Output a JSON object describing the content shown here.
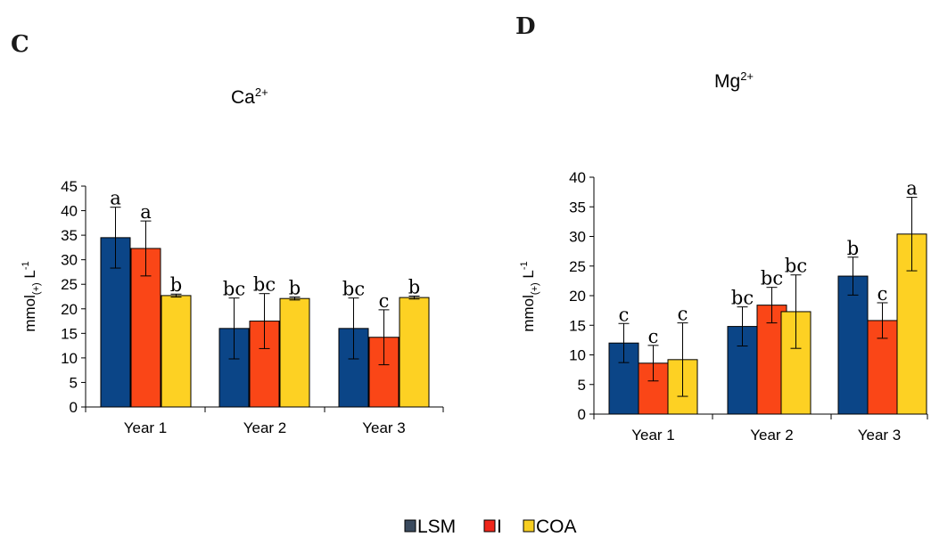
{
  "panels": {
    "c": {
      "letter": "C",
      "title": "Ca",
      "title_sup": "2+"
    },
    "d": {
      "letter": "D",
      "title": "Mg",
      "title_sup": "2+"
    }
  },
  "ylabel_main": "mmol",
  "ylabel_sub": "(+)",
  "ylabel_unit": " L",
  "ylabel_sup": "-1",
  "colors": {
    "LSM": "#0b4587",
    "I": "#fa4617",
    "COA": "#fdd123"
  },
  "legend": [
    {
      "name": "LSM",
      "color": "#3a4a5e"
    },
    {
      "name": "I",
      "color": "#f0261a"
    },
    {
      "name": "COA",
      "color": "#f8cf22"
    }
  ],
  "chart_data": [
    {
      "type": "bar",
      "title": "Ca2+",
      "ylabel": "mmol(+) L-1",
      "ylim": [
        0,
        45
      ],
      "yticks": [
        0,
        5,
        10,
        15,
        20,
        25,
        30,
        35,
        40,
        45
      ],
      "categories": [
        "Year 1",
        "Year 2",
        "Year 3"
      ],
      "series": [
        {
          "name": "LSM",
          "values": [
            34.5,
            16.0,
            16.0
          ],
          "errors": [
            6.2,
            6.2,
            6.2
          ],
          "letters": [
            "a",
            "bc",
            "bc"
          ]
        },
        {
          "name": "I",
          "values": [
            32.3,
            17.5,
            14.2
          ],
          "errors": [
            5.6,
            5.6,
            5.6
          ],
          "letters": [
            "a",
            "bc",
            "c"
          ]
        },
        {
          "name": "COA",
          "values": [
            22.7,
            22.1,
            22.3
          ],
          "errors": [
            0.3,
            0.3,
            0.3
          ],
          "letters": [
            "b",
            "b",
            "b"
          ]
        }
      ]
    },
    {
      "type": "bar",
      "title": "Mg2+",
      "ylabel": "mmol(+) L-1",
      "ylim": [
        0,
        40
      ],
      "yticks": [
        0,
        5,
        10,
        15,
        20,
        25,
        30,
        35,
        40
      ],
      "categories": [
        "Year 1",
        "Year 2",
        "Year 3"
      ],
      "series": [
        {
          "name": "LSM",
          "values": [
            12.0,
            14.8,
            23.3
          ],
          "errors": [
            3.3,
            3.3,
            3.2
          ],
          "letters": [
            "c",
            "bc",
            "b"
          ]
        },
        {
          "name": "I",
          "values": [
            8.6,
            18.4,
            15.8
          ],
          "errors": [
            3.0,
            3.0,
            3.0
          ],
          "letters": [
            "c",
            "bc",
            "c"
          ]
        },
        {
          "name": "COA",
          "values": [
            9.2,
            17.3,
            30.4
          ],
          "errors": [
            6.2,
            6.2,
            6.2
          ],
          "letters": [
            "c",
            "bc",
            "a"
          ]
        }
      ]
    }
  ]
}
